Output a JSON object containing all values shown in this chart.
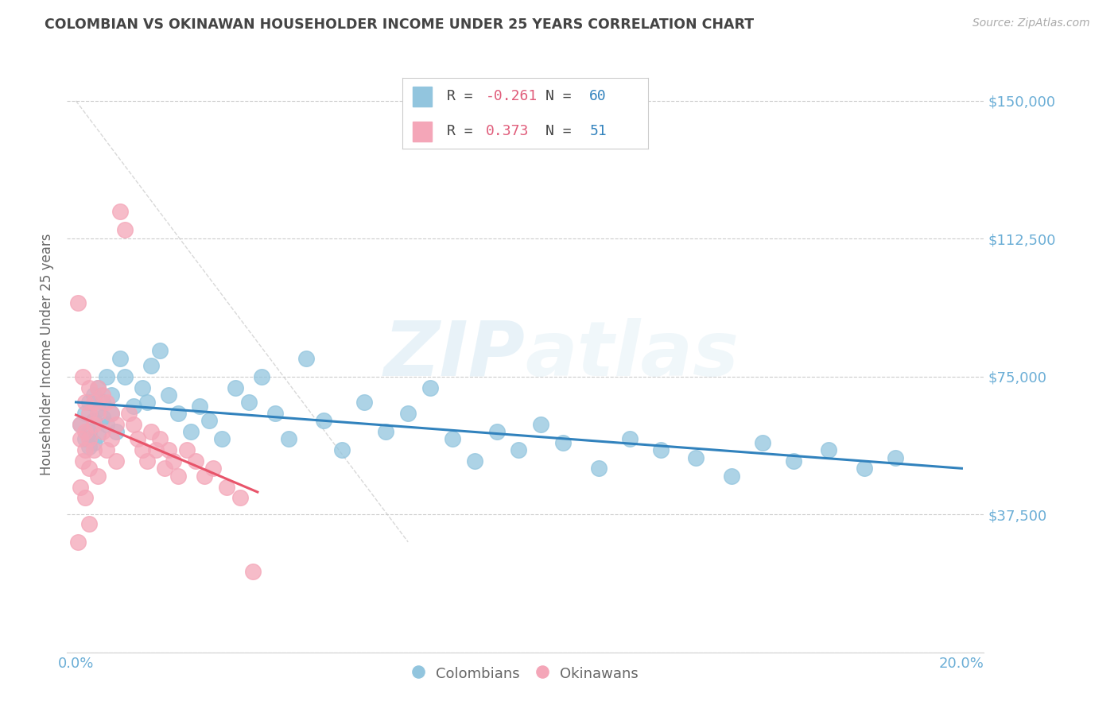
{
  "title": "COLOMBIAN VS OKINAWAN HOUSEHOLDER INCOME UNDER 25 YEARS CORRELATION CHART",
  "source": "Source: ZipAtlas.com",
  "ylabel": "Householder Income Under 25 years",
  "ylim": [
    0,
    162000
  ],
  "xlim": [
    -0.002,
    0.205
  ],
  "yticks": [
    0,
    37500,
    75000,
    112500,
    150000
  ],
  "ytick_labels": [
    "",
    "$37,500",
    "$75,000",
    "$112,500",
    "$150,000"
  ],
  "xticks": [
    0.0,
    0.05,
    0.1,
    0.15,
    0.2
  ],
  "xtick_labels": [
    "0.0%",
    "",
    "",
    "",
    "20.0%"
  ],
  "watermark": "ZIPatlas",
  "legend_R_colombians": "-0.261",
  "legend_N_colombians": "60",
  "legend_R_okinawans": "0.373",
  "legend_N_okinawans": "51",
  "colombian_color": "#92c5de",
  "okinawan_color": "#f4a6b8",
  "colombian_line_color": "#3182bd",
  "okinawan_line_color": "#e8546a",
  "axis_color": "#6baed6",
  "grid_color": "#cccccc",
  "background_color": "#ffffff",
  "title_color": "#444444",
  "colombians_x": [
    0.001,
    0.002,
    0.002,
    0.003,
    0.003,
    0.003,
    0.004,
    0.004,
    0.004,
    0.005,
    0.005,
    0.005,
    0.006,
    0.006,
    0.007,
    0.007,
    0.008,
    0.008,
    0.009,
    0.01,
    0.011,
    0.013,
    0.015,
    0.016,
    0.017,
    0.019,
    0.021,
    0.023,
    0.026,
    0.028,
    0.03,
    0.033,
    0.036,
    0.039,
    0.042,
    0.045,
    0.048,
    0.052,
    0.056,
    0.06,
    0.065,
    0.07,
    0.075,
    0.08,
    0.085,
    0.09,
    0.095,
    0.1,
    0.105,
    0.11,
    0.118,
    0.125,
    0.132,
    0.14,
    0.148,
    0.155,
    0.162,
    0.17,
    0.178,
    0.185
  ],
  "colombians_y": [
    62000,
    65000,
    58000,
    60000,
    56000,
    68000,
    63000,
    57000,
    70000,
    66000,
    59000,
    72000,
    64000,
    68000,
    75000,
    62000,
    70000,
    65000,
    60000,
    80000,
    75000,
    67000,
    72000,
    68000,
    78000,
    82000,
    70000,
    65000,
    60000,
    67000,
    63000,
    58000,
    72000,
    68000,
    75000,
    65000,
    58000,
    80000,
    63000,
    55000,
    68000,
    60000,
    65000,
    72000,
    58000,
    52000,
    60000,
    55000,
    62000,
    57000,
    50000,
    58000,
    55000,
    53000,
    48000,
    57000,
    52000,
    55000,
    50000,
    53000
  ],
  "okinawans_x": [
    0.0005,
    0.0005,
    0.001,
    0.001,
    0.001,
    0.0015,
    0.0015,
    0.002,
    0.002,
    0.002,
    0.002,
    0.003,
    0.003,
    0.003,
    0.003,
    0.003,
    0.004,
    0.004,
    0.004,
    0.005,
    0.005,
    0.005,
    0.006,
    0.006,
    0.007,
    0.007,
    0.008,
    0.008,
    0.009,
    0.009,
    0.01,
    0.011,
    0.012,
    0.013,
    0.014,
    0.015,
    0.016,
    0.017,
    0.018,
    0.019,
    0.02,
    0.021,
    0.022,
    0.023,
    0.025,
    0.027,
    0.029,
    0.031,
    0.034,
    0.037,
    0.04
  ],
  "okinawans_y": [
    95000,
    30000,
    62000,
    58000,
    45000,
    75000,
    52000,
    68000,
    60000,
    55000,
    42000,
    72000,
    65000,
    58000,
    50000,
    35000,
    68000,
    62000,
    55000,
    72000,
    65000,
    48000,
    70000,
    60000,
    68000,
    55000,
    65000,
    58000,
    62000,
    52000,
    120000,
    115000,
    65000,
    62000,
    58000,
    55000,
    52000,
    60000,
    55000,
    58000,
    50000,
    55000,
    52000,
    48000,
    55000,
    52000,
    48000,
    50000,
    45000,
    42000,
    22000
  ]
}
